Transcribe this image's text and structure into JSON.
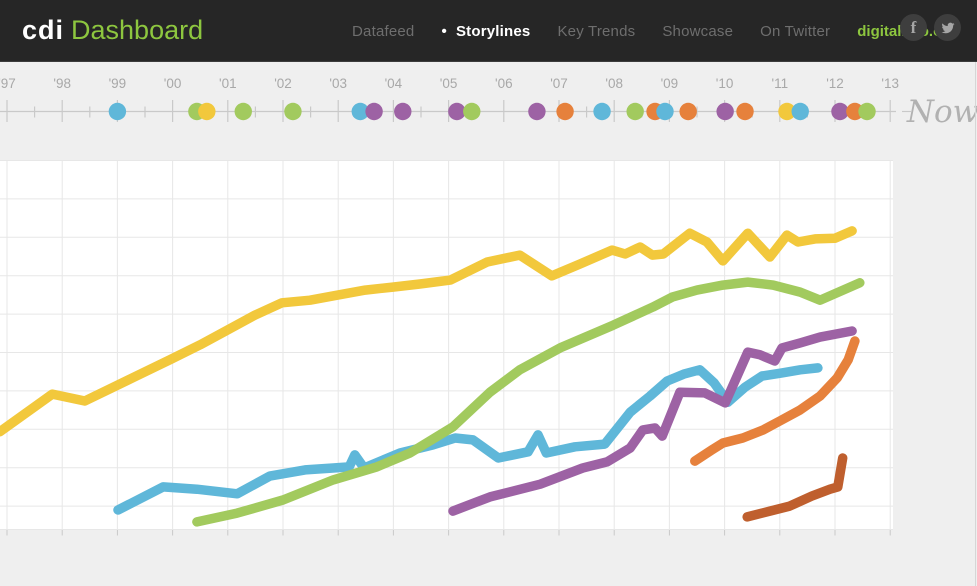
{
  "header": {
    "logo_mark": "cdi",
    "logo_title": "Dashboard",
    "nav": [
      {
        "label": "Datafeed",
        "active": false
      },
      {
        "label": "Storylines",
        "active": true
      },
      {
        "label": "Key Trends",
        "active": false
      },
      {
        "label": "Showcase",
        "active": false
      },
      {
        "label": "On Twitter",
        "active": false
      }
    ],
    "site_link": "digitalinfo.org",
    "social": [
      {
        "icon": "facebook-icon",
        "glyph": "f"
      },
      {
        "icon": "twitter-icon"
      }
    ]
  },
  "timeline": {
    "start_year": 1997,
    "end_year": 2013,
    "year_labels": [
      "'97",
      "'98",
      "'99",
      "'00",
      "'01",
      "'02",
      "'03",
      "'04",
      "'05",
      "'06",
      "'07",
      "'08",
      "'09",
      "'10",
      "'11",
      "'12",
      "'13"
    ],
    "now_label": "Now",
    "events": [
      {
        "year": 1999.0,
        "color": "blue"
      },
      {
        "year": 2000.44,
        "color": "green"
      },
      {
        "year": 2000.62,
        "color": "yellow"
      },
      {
        "year": 2001.28,
        "color": "green"
      },
      {
        "year": 2002.18,
        "color": "green"
      },
      {
        "year": 2003.4,
        "color": "blue"
      },
      {
        "year": 2003.65,
        "color": "purple"
      },
      {
        "year": 2004.17,
        "color": "purple"
      },
      {
        "year": 2005.15,
        "color": "purple"
      },
      {
        "year": 2005.42,
        "color": "green"
      },
      {
        "year": 2006.6,
        "color": "purple"
      },
      {
        "year": 2007.11,
        "color": "orange"
      },
      {
        "year": 2007.78,
        "color": "blue"
      },
      {
        "year": 2008.38,
        "color": "green"
      },
      {
        "year": 2008.74,
        "color": "orange"
      },
      {
        "year": 2008.92,
        "color": "blue"
      },
      {
        "year": 2009.34,
        "color": "orange"
      },
      {
        "year": 2010.01,
        "color": "purple"
      },
      {
        "year": 2010.37,
        "color": "orange"
      },
      {
        "year": 2011.13,
        "color": "yellow"
      },
      {
        "year": 2011.37,
        "color": "blue"
      },
      {
        "year": 2012.09,
        "color": "purple"
      },
      {
        "year": 2012.36,
        "color": "orange"
      },
      {
        "year": 2012.58,
        "color": "green"
      }
    ]
  },
  "chart_data": {
    "type": "line",
    "title": "",
    "x_axis": {
      "label": "year",
      "range": [
        1996.87,
        2013.0
      ],
      "ticks": [
        1997,
        1998,
        1999,
        2000,
        2001,
        2002,
        2003,
        2004,
        2005,
        2006,
        2007,
        2008,
        2009,
        2010,
        2011,
        2012,
        2013
      ]
    },
    "y_axis": {
      "label": "",
      "range": [
        0,
        9.6
      ],
      "note": "no y-axis value labels visible; values expressed in gridline units from chart bottom"
    },
    "grid": true,
    "legend": "none",
    "series": [
      {
        "name": "blue",
        "points": [
          [
            1999.01,
            0.52
          ],
          [
            1999.83,
            1.12
          ],
          [
            2000.44,
            1.06
          ],
          [
            2001.17,
            0.94
          ],
          [
            2001.76,
            1.4
          ],
          [
            2002.4,
            1.56
          ],
          [
            2002.91,
            1.61
          ],
          [
            2003.2,
            1.64
          ],
          [
            2003.3,
            1.95
          ],
          [
            2003.47,
            1.61
          ],
          [
            2004.12,
            2.0
          ],
          [
            2004.72,
            2.21
          ],
          [
            2005.12,
            2.39
          ],
          [
            2005.44,
            2.34
          ],
          [
            2005.9,
            1.87
          ],
          [
            2006.44,
            2.03
          ],
          [
            2006.62,
            2.47
          ],
          [
            2006.77,
            2.0
          ],
          [
            2007.29,
            2.16
          ],
          [
            2007.83,
            2.23
          ],
          [
            2008.29,
            3.06
          ],
          [
            2008.65,
            3.48
          ],
          [
            2008.96,
            3.87
          ],
          [
            2009.26,
            4.05
          ],
          [
            2009.55,
            4.16
          ],
          [
            2009.81,
            3.82
          ],
          [
            2010.06,
            3.32
          ],
          [
            2010.37,
            3.71
          ],
          [
            2010.68,
            4.0
          ],
          [
            2011.04,
            4.08
          ],
          [
            2011.37,
            4.16
          ],
          [
            2011.69,
            4.21
          ]
        ]
      },
      {
        "name": "green",
        "points": [
          [
            2000.44,
            0.21
          ],
          [
            2001.17,
            0.44
          ],
          [
            2002.0,
            0.78
          ],
          [
            2002.91,
            1.3
          ],
          [
            2003.7,
            1.64
          ],
          [
            2004.3,
            2.0
          ],
          [
            2005.08,
            2.68
          ],
          [
            2005.75,
            3.58
          ],
          [
            2006.29,
            4.16
          ],
          [
            2007.02,
            4.73
          ],
          [
            2007.98,
            5.32
          ],
          [
            2008.7,
            5.79
          ],
          [
            2009.05,
            6.05
          ],
          [
            2009.5,
            6.23
          ],
          [
            2009.97,
            6.36
          ],
          [
            2010.42,
            6.44
          ],
          [
            2010.88,
            6.36
          ],
          [
            2011.37,
            6.18
          ],
          [
            2011.73,
            5.97
          ],
          [
            2012.45,
            6.42
          ]
        ]
      },
      {
        "name": "dark_orange",
        "points": [
          [
            2010.41,
            0.34
          ],
          [
            2010.82,
            0.49
          ],
          [
            2011.18,
            0.62
          ],
          [
            2011.58,
            0.88
          ],
          [
            2011.91,
            1.06
          ],
          [
            2012.05,
            1.12
          ],
          [
            2012.14,
            1.87
          ]
        ]
      },
      {
        "name": "orange",
        "points": [
          [
            2009.46,
            1.79
          ],
          [
            2009.77,
            2.08
          ],
          [
            2009.97,
            2.26
          ],
          [
            2010.33,
            2.39
          ],
          [
            2010.7,
            2.6
          ],
          [
            2011.0,
            2.83
          ],
          [
            2011.37,
            3.12
          ],
          [
            2011.73,
            3.48
          ],
          [
            2012.04,
            3.95
          ],
          [
            2012.24,
            4.42
          ],
          [
            2012.36,
            4.91
          ]
        ]
      },
      {
        "name": "purple",
        "points": [
          [
            2005.08,
            0.49
          ],
          [
            2005.51,
            0.73
          ],
          [
            2005.75,
            0.86
          ],
          [
            2006.66,
            1.19
          ],
          [
            2007.43,
            1.61
          ],
          [
            2007.87,
            1.77
          ],
          [
            2008.29,
            2.13
          ],
          [
            2008.52,
            2.6
          ],
          [
            2008.74,
            2.65
          ],
          [
            2008.87,
            2.44
          ],
          [
            2009.19,
            3.58
          ],
          [
            2009.64,
            3.56
          ],
          [
            2010.01,
            3.3
          ],
          [
            2010.42,
            4.62
          ],
          [
            2010.64,
            4.55
          ],
          [
            2010.91,
            4.39
          ],
          [
            2011.04,
            4.73
          ],
          [
            2011.37,
            4.86
          ],
          [
            2011.73,
            5.01
          ],
          [
            2012.31,
            5.17
          ]
        ]
      },
      {
        "name": "yellow",
        "points": [
          [
            1996.87,
            2.55
          ],
          [
            1997.82,
            3.53
          ],
          [
            1998.41,
            3.35
          ],
          [
            1999.95,
            4.42
          ],
          [
            2000.5,
            4.81
          ],
          [
            2000.99,
            5.19
          ],
          [
            2001.49,
            5.58
          ],
          [
            2001.98,
            5.9
          ],
          [
            2002.49,
            5.97
          ],
          [
            2002.98,
            6.1
          ],
          [
            2003.49,
            6.23
          ],
          [
            2003.99,
            6.31
          ],
          [
            2004.48,
            6.39
          ],
          [
            2005.03,
            6.49
          ],
          [
            2005.7,
            6.96
          ],
          [
            2006.29,
            7.14
          ],
          [
            2006.87,
            6.6
          ],
          [
            2007.38,
            6.91
          ],
          [
            2007.96,
            7.27
          ],
          [
            2008.2,
            7.17
          ],
          [
            2008.47,
            7.35
          ],
          [
            2008.69,
            7.14
          ],
          [
            2008.89,
            7.17
          ],
          [
            2009.37,
            7.71
          ],
          [
            2009.68,
            7.48
          ],
          [
            2009.97,
            6.99
          ],
          [
            2010.42,
            7.71
          ],
          [
            2010.82,
            7.09
          ],
          [
            2011.13,
            7.66
          ],
          [
            2011.33,
            7.48
          ],
          [
            2011.64,
            7.56
          ],
          [
            2012.0,
            7.58
          ],
          [
            2012.31,
            7.77
          ]
        ]
      }
    ]
  },
  "colors": {
    "header_bg": "#262626",
    "brand_green": "#8dc63f",
    "page_bg": "#efefef",
    "chart_bg": "#ffffff",
    "grid": "#e7e7e7",
    "axis": "#c9c9c9",
    "year_label": "#a8a8a8",
    "now": "#b1b1b1",
    "series": {
      "yellow": "#f2c83c",
      "green": "#a2ca5e",
      "blue": "#5fb7d9",
      "purple": "#9d62a4",
      "orange": "#e6813c",
      "dark_orange": "#bf5f2e"
    }
  }
}
